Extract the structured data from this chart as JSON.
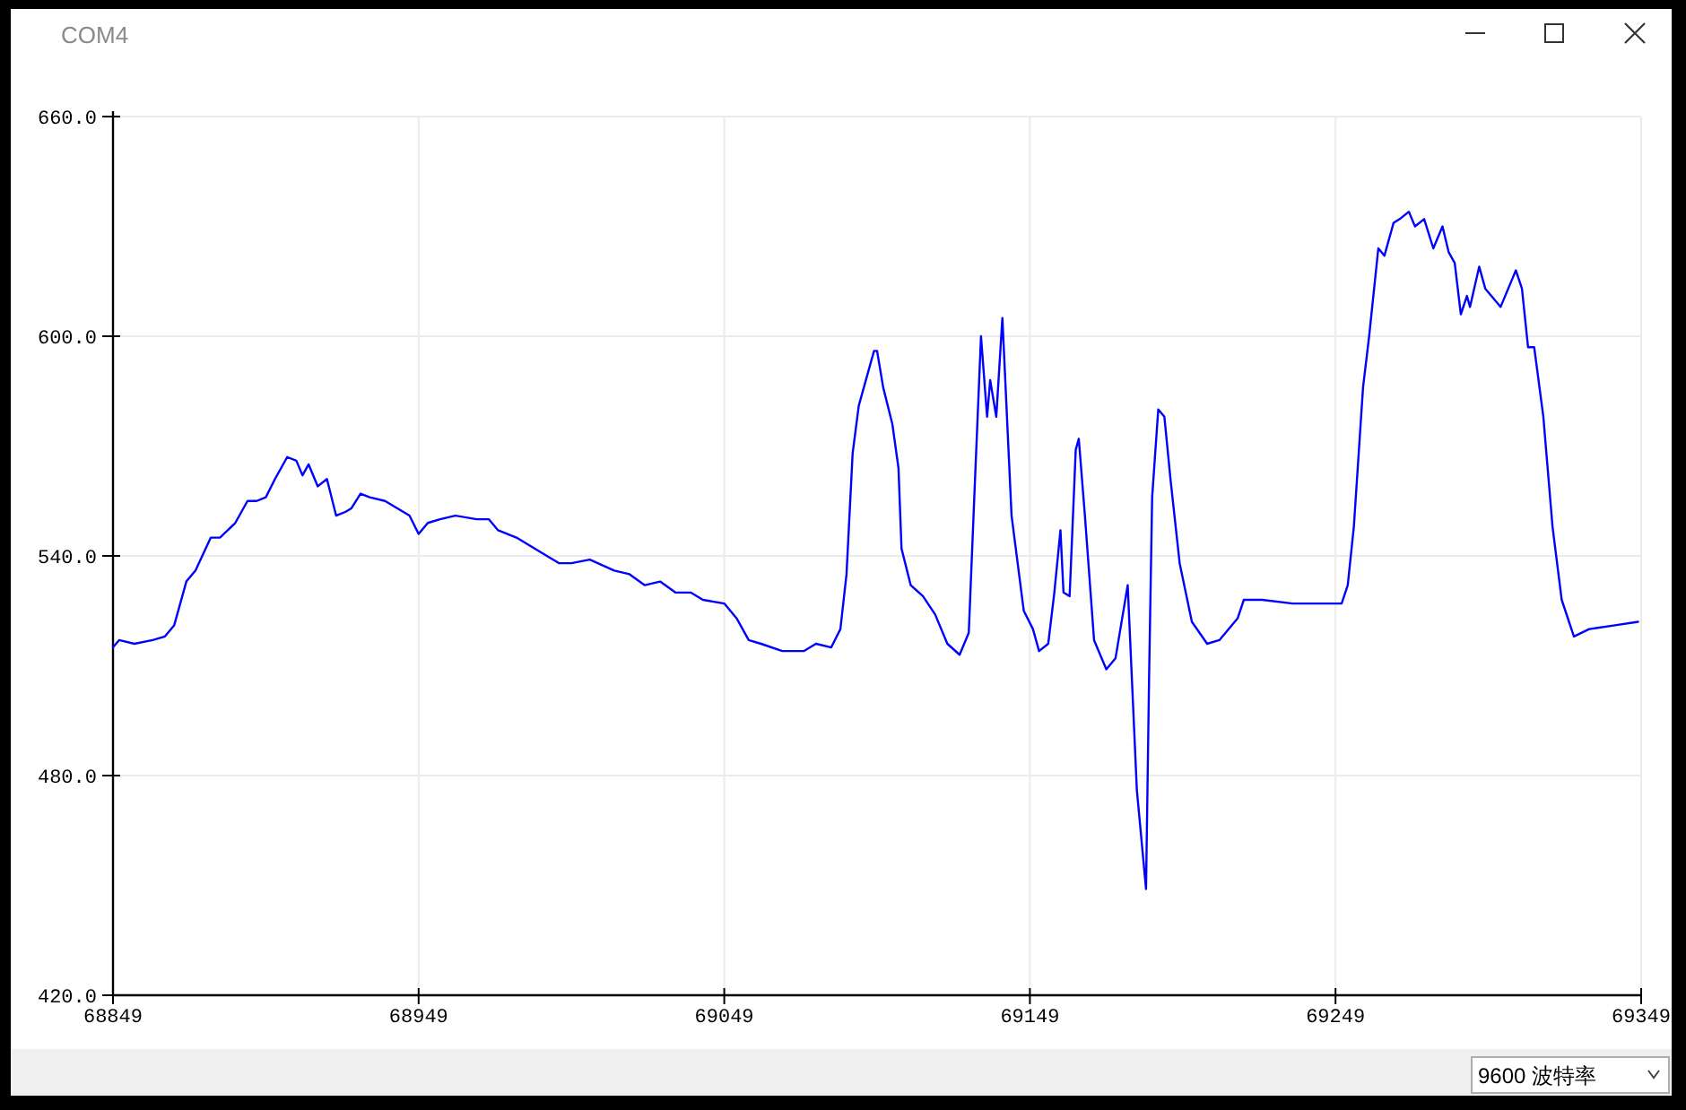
{
  "chart_data": {
    "type": "line",
    "title": "COM4",
    "annotations": [
      "9600 波特率"
    ],
    "x": [
      68849,
      68851,
      68856,
      68862,
      68866,
      68869,
      68873,
      68876,
      68881,
      68884,
      68889,
      68893,
      68896,
      68899,
      68902,
      68906,
      68909,
      68911,
      68913,
      68916,
      68919,
      68922,
      68925,
      68927,
      68930,
      68933,
      68938,
      68946,
      68949,
      68952,
      68956,
      68961,
      68968,
      68972,
      68975,
      68981,
      68989,
      68995,
      68999,
      69005,
      69013,
      69018,
      69023,
      69028,
      69033,
      69038,
      69042,
      69049,
      69053,
      69057,
      69061,
      69068,
      69075,
      69079,
      69084,
      69087,
      69089,
      69091,
      69093,
      69095,
      69098,
      69099,
      69101,
      69104,
      69106,
      69107,
      69110,
      69114,
      69118,
      69122,
      69126,
      69129,
      69131,
      69133,
      69135,
      69136,
      69138,
      69140,
      69143,
      69147,
      69150,
      69152,
      69155,
      69157,
      69159,
      69160,
      69162,
      69164,
      69165,
      69167,
      69170,
      69174,
      69177,
      69181,
      69184,
      69187,
      69188,
      69189,
      69191,
      69193,
      69195,
      69198,
      69202,
      69207,
      69211,
      69217,
      69219,
      69225,
      69235,
      69242,
      69251,
      69253,
      69255,
      69258,
      69260,
      69263,
      69265,
      69268,
      69270,
      69273,
      69275,
      69278,
      69281,
      69284,
      69286,
      69288,
      69290,
      69292,
      69293,
      69296,
      69298,
      69303,
      69306,
      69308,
      69310,
      69312,
      69314,
      69317,
      69320,
      69323,
      69327,
      69332,
      69340,
      69348
    ],
    "series": [
      {
        "color": "#0000ff",
        "values": [
          515,
          517,
          516,
          517,
          518,
          521,
          533,
          536,
          545,
          545,
          549,
          555,
          555,
          556,
          561,
          567,
          566,
          562,
          565,
          559,
          561,
          551,
          552,
          553,
          557,
          556,
          555,
          551,
          546,
          549,
          550,
          551,
          550,
          550,
          547,
          545,
          541,
          538,
          538,
          539,
          536,
          535,
          532,
          533,
          530,
          530,
          528,
          527,
          523,
          517,
          516,
          514,
          514,
          516,
          515,
          520,
          535,
          568,
          581,
          587,
          596,
          596,
          586,
          576,
          564,
          542,
          532,
          529,
          524,
          516,
          513,
          519,
          560,
          600,
          578,
          588,
          578,
          605,
          551,
          525,
          520,
          514,
          516,
          530,
          547,
          530,
          529,
          569,
          572,
          551,
          517,
          509,
          512,
          532,
          476,
          449,
          507,
          556,
          580,
          578,
          561,
          538,
          522,
          516,
          517,
          523,
          528,
          528,
          527,
          527,
          527,
          532,
          548,
          586,
          600,
          624,
          622,
          631,
          632,
          634,
          630,
          632,
          624,
          630,
          623,
          620,
          606,
          611,
          608,
          619,
          613,
          608,
          614,
          618,
          613,
          597,
          597,
          578,
          548,
          528,
          518,
          520,
          521,
          522
        ]
      }
    ],
    "xlim": [
      68849,
      69349
    ],
    "xticks": [
      68849,
      68949,
      69049,
      69149,
      69249,
      69349
    ],
    "ylim": [
      420,
      660
    ],
    "yticks": [
      {
        "value": 420,
        "label": "420.0"
      },
      {
        "value": 480,
        "label": "480.0"
      },
      {
        "value": 540,
        "label": "540.0"
      },
      {
        "value": 600,
        "label": "600.0"
      },
      {
        "value": 660,
        "label": "660.0"
      }
    ],
    "grid": true
  }
}
